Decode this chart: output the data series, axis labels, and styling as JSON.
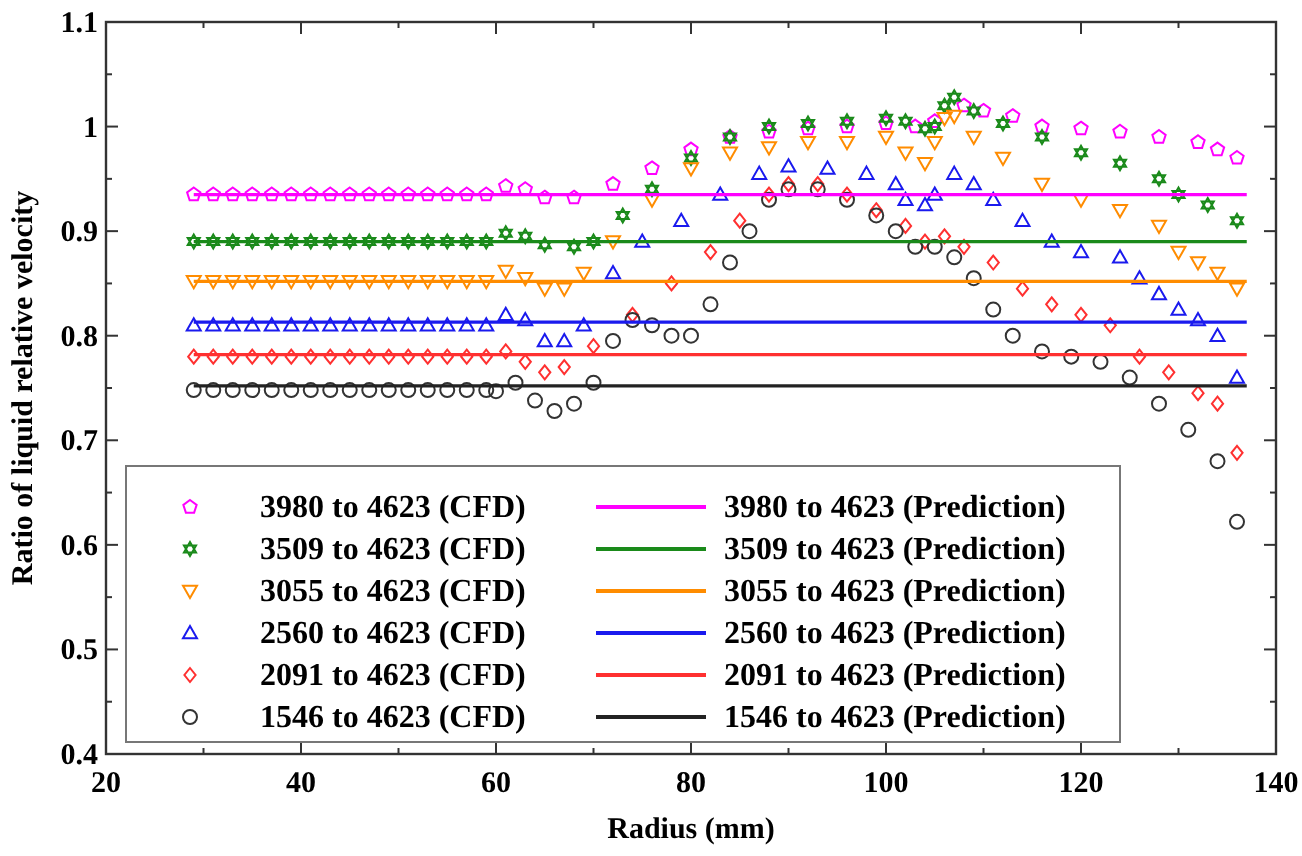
{
  "chart_data": {
    "type": "scatter",
    "xlabel": "Radius (mm)",
    "ylabel": "Ratio of liquid relative velocity",
    "xlim": [
      20,
      140
    ],
    "ylim": [
      0.4,
      1.1
    ],
    "xticks": [
      20,
      {
        "value": 30,
        "label": null
      },
      40,
      {
        "value": 50,
        "label": null
      },
      60,
      {
        "value": 70,
        "label": null
      },
      80,
      {
        "value": 90,
        "label": null
      },
      100,
      {
        "value": 110,
        "label": null
      },
      120,
      {
        "value": 130,
        "label": null
      },
      140
    ],
    "yticks": [
      0.4,
      {
        "value": 0.45,
        "label": null
      },
      0.5,
      {
        "value": 0.55,
        "label": null
      },
      0.6,
      {
        "value": 0.65,
        "label": null
      },
      0.7,
      {
        "value": 0.75,
        "label": null
      },
      0.8,
      {
        "value": 0.85,
        "label": null
      },
      0.9,
      {
        "value": 0.95,
        "label": null
      },
      1,
      {
        "value": 1.05,
        "label": null
      },
      1.1
    ],
    "grid": false,
    "legend": "bottom left",
    "series": [
      {
        "name": "3980 to 4623 (CFD)",
        "color": "#ff00ff",
        "x": [
          29,
          31,
          33,
          35,
          37,
          39,
          41,
          43,
          45,
          47,
          49,
          51,
          53,
          55,
          57,
          59,
          61,
          63,
          65,
          68,
          72,
          76,
          80,
          84,
          88,
          92,
          96,
          100,
          103,
          105,
          108,
          110,
          113,
          116,
          120,
          124,
          128,
          132,
          134,
          136
        ],
        "values": [
          0.935,
          0.935,
          0.935,
          0.935,
          0.935,
          0.935,
          0.935,
          0.935,
          0.935,
          0.935,
          0.935,
          0.935,
          0.935,
          0.935,
          0.935,
          0.935,
          0.943,
          0.94,
          0.932,
          0.932,
          0.945,
          0.96,
          0.978,
          0.99,
          0.995,
          0.998,
          1.0,
          1.003,
          1.0,
          1.005,
          1.02,
          1.015,
          1.01,
          1.0,
          0.998,
          0.995,
          0.99,
          0.985,
          0.978,
          0.97
        ]
      },
      {
        "name": "3509 to 4623 (CFD)",
        "color": "#1a8a1a",
        "marker": "star",
        "x": [
          29,
          31,
          33,
          35,
          37,
          39,
          41,
          43,
          45,
          47,
          49,
          51,
          53,
          55,
          57,
          59,
          61,
          63,
          65,
          68,
          70,
          73,
          76,
          80,
          84,
          88,
          92,
          96,
          100,
          102,
          104,
          105,
          106,
          107,
          109,
          112,
          116,
          120,
          124,
          128,
          130,
          133,
          136
        ],
        "values": [
          0.89,
          0.89,
          0.89,
          0.89,
          0.89,
          0.89,
          0.89,
          0.89,
          0.89,
          0.89,
          0.89,
          0.89,
          0.89,
          0.89,
          0.89,
          0.89,
          0.898,
          0.895,
          0.887,
          0.885,
          0.89,
          0.915,
          0.94,
          0.97,
          0.99,
          1.0,
          1.003,
          1.005,
          1.008,
          1.005,
          0.998,
          1.0,
          1.02,
          1.028,
          1.015,
          1.003,
          0.99,
          0.975,
          0.965,
          0.95,
          0.935,
          0.925,
          0.91
        ]
      },
      {
        "name": "3055 to 4623 (CFD)",
        "color": "#ff8c00",
        "marker": "triangle-down",
        "x": [
          29,
          31,
          33,
          35,
          37,
          39,
          41,
          43,
          45,
          47,
          49,
          51,
          53,
          55,
          57,
          59,
          61,
          63,
          65,
          67,
          69,
          72,
          76,
          80,
          84,
          88,
          92,
          96,
          100,
          102,
          104,
          105,
          106,
          107,
          109,
          112,
          116,
          120,
          124,
          128,
          130,
          132,
          134,
          136
        ],
        "values": [
          0.852,
          0.852,
          0.852,
          0.852,
          0.852,
          0.852,
          0.852,
          0.852,
          0.852,
          0.852,
          0.852,
          0.852,
          0.852,
          0.852,
          0.852,
          0.852,
          0.862,
          0.855,
          0.845,
          0.845,
          0.86,
          0.89,
          0.93,
          0.96,
          0.975,
          0.98,
          0.985,
          0.985,
          0.99,
          0.975,
          0.965,
          0.985,
          1.008,
          1.01,
          0.99,
          0.97,
          0.945,
          0.93,
          0.92,
          0.905,
          0.88,
          0.87,
          0.86,
          0.845
        ]
      },
      {
        "name": "2560 to 4623 (CFD)",
        "color": "#1a1aee",
        "marker": "triangle",
        "x": [
          29,
          31,
          33,
          35,
          37,
          39,
          41,
          43,
          45,
          47,
          49,
          51,
          53,
          55,
          57,
          59,
          61,
          63,
          65,
          67,
          69,
          72,
          75,
          79,
          83,
          87,
          90,
          94,
          98,
          101,
          102,
          104,
          105,
          107,
          109,
          111,
          114,
          117,
          120,
          124,
          126,
          128,
          130,
          132,
          134,
          136
        ],
        "values": [
          0.81,
          0.81,
          0.81,
          0.81,
          0.81,
          0.81,
          0.81,
          0.81,
          0.81,
          0.81,
          0.81,
          0.81,
          0.81,
          0.81,
          0.81,
          0.81,
          0.82,
          0.815,
          0.795,
          0.795,
          0.81,
          0.86,
          0.89,
          0.91,
          0.935,
          0.955,
          0.962,
          0.96,
          0.955,
          0.945,
          0.93,
          0.925,
          0.935,
          0.955,
          0.945,
          0.93,
          0.91,
          0.89,
          0.88,
          0.875,
          0.855,
          0.84,
          0.825,
          0.815,
          0.8,
          0.76
        ]
      },
      {
        "name": "2091 to 4623 (CFD)",
        "color": "#ff3030",
        "marker": "diamond",
        "x": [
          29,
          31,
          33,
          35,
          37,
          39,
          41,
          43,
          45,
          47,
          49,
          51,
          53,
          55,
          57,
          59,
          61,
          63,
          65,
          67,
          70,
          74,
          78,
          82,
          85,
          88,
          90,
          93,
          96,
          99,
          102,
          104,
          106,
          108,
          111,
          114,
          117,
          120,
          123,
          126,
          129,
          132,
          134,
          136
        ],
        "values": [
          0.78,
          0.78,
          0.78,
          0.78,
          0.78,
          0.78,
          0.78,
          0.78,
          0.78,
          0.78,
          0.78,
          0.78,
          0.78,
          0.78,
          0.78,
          0.78,
          0.785,
          0.775,
          0.765,
          0.77,
          0.79,
          0.82,
          0.85,
          0.88,
          0.91,
          0.935,
          0.945,
          0.945,
          0.935,
          0.92,
          0.905,
          0.89,
          0.895,
          0.885,
          0.87,
          0.845,
          0.83,
          0.82,
          0.81,
          0.78,
          0.765,
          0.745,
          0.735,
          0.688
        ]
      },
      {
        "name": "1546 to 4623 (CFD)",
        "color": "#333333",
        "marker": "circle",
        "x": [
          29,
          31,
          33,
          35,
          37,
          39,
          41,
          43,
          45,
          47,
          49,
          51,
          53,
          55,
          57,
          59,
          60,
          62,
          64,
          66,
          68,
          70,
          72,
          74,
          76,
          78,
          80,
          82,
          84,
          86,
          88,
          90,
          93,
          96,
          99,
          101,
          103,
          105,
          107,
          109,
          111,
          113,
          116,
          119,
          122,
          125,
          128,
          131,
          134,
          136
        ],
        "values": [
          0.748,
          0.748,
          0.748,
          0.748,
          0.748,
          0.748,
          0.748,
          0.748,
          0.748,
          0.748,
          0.748,
          0.748,
          0.748,
          0.748,
          0.748,
          0.748,
          0.747,
          0.755,
          0.738,
          0.728,
          0.735,
          0.755,
          0.795,
          0.815,
          0.81,
          0.8,
          0.8,
          0.83,
          0.87,
          0.9,
          0.93,
          0.94,
          0.94,
          0.93,
          0.915,
          0.9,
          0.885,
          0.885,
          0.875,
          0.855,
          0.825,
          0.8,
          0.785,
          0.78,
          0.775,
          0.76,
          0.735,
          0.71,
          0.68,
          0.622
        ]
      },
      {
        "name": "3980 to 4623 (Prediction)",
        "type": "line",
        "color": "#ff00ff",
        "marker": "none",
        "x": [
          29,
          137
        ],
        "values": [
          0.935,
          0.935
        ]
      },
      {
        "name": "3509 to 4623 (Prediction)",
        "type": "line",
        "color": "#1a8a1a",
        "marker": "none",
        "x": [
          29,
          137
        ],
        "values": [
          0.89,
          0.89
        ]
      },
      {
        "name": "3055 to 4623 (Prediction)",
        "type": "line",
        "color": "#ff8c00",
        "marker": "none",
        "x": [
          29,
          137
        ],
        "values": [
          0.852,
          0.852
        ]
      },
      {
        "name": "2560 to 4623 (Prediction)",
        "type": "line",
        "color": "#1a1aee",
        "marker": "none",
        "x": [
          29,
          137
        ],
        "values": [
          0.813,
          0.813
        ]
      },
      {
        "name": "2091 to 4623 (Prediction)",
        "type": "line",
        "color": "#ff3030",
        "marker": "none",
        "x": [
          29,
          137
        ],
        "values": [
          0.782,
          0.782
        ]
      },
      {
        "name": "1546 to 4623 (Prediction)",
        "type": "line",
        "color": "#222222",
        "marker": "none",
        "x": [
          29,
          137
        ],
        "values": [
          0.752,
          0.752
        ]
      }
    ]
  }
}
